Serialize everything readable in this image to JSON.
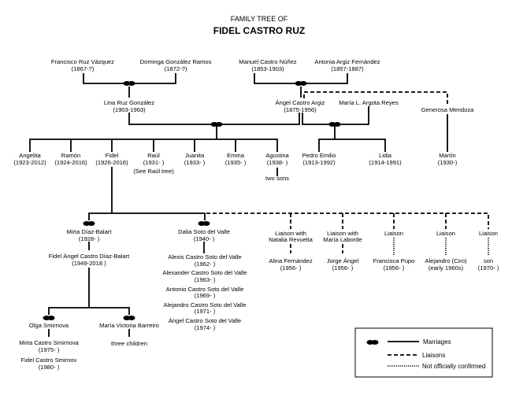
{
  "title": {
    "line1": "FAMILY TREE OF",
    "line2": "FIDEL CASTRO RUZ"
  },
  "colors": {
    "ring": "#e8e070",
    "lines": "#000000"
  },
  "grandparents": [
    {
      "name": "Francisco Ruz Vázquez",
      "dates": "(1867-?)"
    },
    {
      "name": "Dominga González Ramos",
      "dates": "(1872-?)"
    },
    {
      "name": "Manuel Castro Núñez",
      "dates": "(1853-1903)"
    },
    {
      "name": "Antonia Argiz Fernández",
      "dates": "(1857-1887)"
    }
  ],
  "parents": {
    "lina": {
      "name": "Lina Ruz González",
      "dates": "(1903-1963)"
    },
    "angel": {
      "name": "Ángel Castro Argiz",
      "dates": "(1875-1956)"
    },
    "maria": {
      "name": "María L. Argota Reyes"
    },
    "generosa": {
      "name": "Generosa Mendoza"
    }
  },
  "siblings": [
    {
      "name": "Angelita",
      "dates": "(1923-2012)"
    },
    {
      "name": "Ramón",
      "dates": "(1924-2016)"
    },
    {
      "name": "Fidel",
      "dates": "(1926-2016)"
    },
    {
      "name": "Raúl",
      "dates": "(1931- )",
      "note": "(See Raúl tree)"
    },
    {
      "name": "Juanita",
      "dates": "(1933- )"
    },
    {
      "name": "Emma",
      "dates": "(1935- )"
    },
    {
      "name": "Agustina",
      "dates": "(1938- )",
      "note": "two sons"
    }
  ],
  "half_siblings": [
    {
      "name": "Pedro Emilio",
      "dates": "(1913-1992)"
    },
    {
      "name": "Lidia",
      "dates": "(1914-1991)"
    },
    {
      "name": "Martín",
      "dates": "(1930-)"
    }
  ],
  "spouses": {
    "mirta": {
      "name": "Mirta Díaz-Balart",
      "dates": "(1928- )"
    },
    "dalia": {
      "name": "Dalia Soto del Valle",
      "dates": "(1940- )"
    }
  },
  "fidelito": {
    "name": "Fidel Ángel Castro Díaz-Balart",
    "dates": "(1949-2018 )"
  },
  "fidelito_spouses": {
    "olga": {
      "name": "Olga Smirnova"
    },
    "maria_victoria": {
      "name": "María Victoria Barreiro",
      "note": "three children"
    }
  },
  "olga_children": [
    {
      "name": "Mirta Castro Smirnova",
      "dates": "(1975- )"
    },
    {
      "name": "Fidel Castro Smirnov",
      "dates": "(1980- )"
    }
  ],
  "dalia_children": [
    {
      "name": "Alexis Castro Soto del Valle",
      "dates": "(1962- )"
    },
    {
      "name": "Alexander Castro Soto del Valle",
      "dates": "(1963- )"
    },
    {
      "name": "Antonio Castro Soto del Valle",
      "dates": "(1969- )"
    },
    {
      "name": "Alejandro Castro Soto del Valle",
      "dates": "(1971- )"
    },
    {
      "name": "Ángel Castro Soto del Valle",
      "dates": "(1974- )"
    }
  ],
  "liaisons": [
    {
      "label1": "Liaison with",
      "label2": "Natalia Revuelta",
      "name": "Alina Fernández",
      "dates": "(1956- )",
      "confirmed": true
    },
    {
      "label1": "Liaison with",
      "label2": "María Laborde",
      "name": "Jorge Ángel",
      "dates": "(1956- )",
      "confirmed": true
    },
    {
      "label1": "Liaison",
      "name": "Francisca Pupo",
      "dates": "(1956- )",
      "confirmed": false
    },
    {
      "label1": "Liaison",
      "name": "Alejandro (Ciro)",
      "dates": "(early 1960s)",
      "confirmed": false
    },
    {
      "label1": "Liaison",
      "name": "son",
      "dates": "(1970- )",
      "confirmed": false
    }
  ],
  "legend": {
    "marriages": "Marriages",
    "liaisons": "Liaisons",
    "unconfirmed": "Not officially confirmed"
  }
}
